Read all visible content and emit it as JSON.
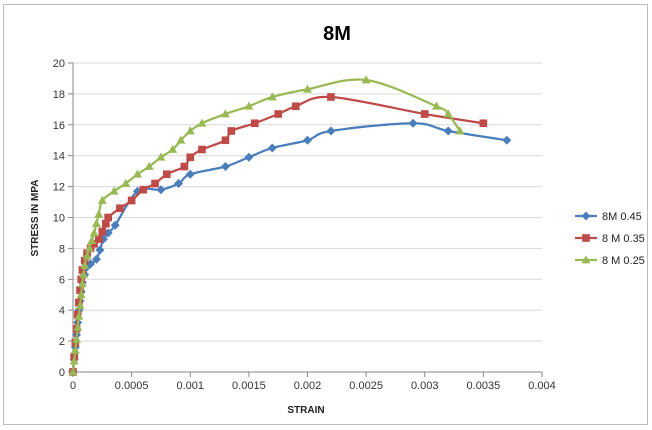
{
  "chart_data": {
    "type": "line",
    "title": "8M",
    "xlabel": "STRAIN",
    "ylabel": "STRESS IN MPA",
    "xlim": [
      0,
      0.004
    ],
    "ylim": [
      0,
      20
    ],
    "xticks": [
      0,
      0.0005,
      0.001,
      0.0015,
      0.002,
      0.0025,
      0.003,
      0.0035,
      0.004
    ],
    "xtick_labels": [
      "0",
      "0.0005",
      "0.001",
      "0.0015",
      "0.002",
      "0.0025",
      "0.003",
      "0.0035",
      "0.004"
    ],
    "yticks": [
      0,
      2,
      4,
      6,
      8,
      10,
      12,
      14,
      16,
      18,
      20
    ],
    "ytick_labels": [
      "0",
      "2",
      "4",
      "6",
      "8",
      "10",
      "12",
      "14",
      "16",
      "18",
      "20"
    ],
    "grid": "horizontal",
    "legend_position": "right",
    "series": [
      {
        "name": "8M 0.45",
        "color": "#4a7ebb",
        "marker": "diamond",
        "x": [
          0,
          1e-05,
          2e-05,
          3e-05,
          4e-05,
          5e-05,
          6e-05,
          7e-05,
          8e-05,
          0.0001,
          0.00012,
          0.00015,
          0.0002,
          0.00023,
          0.00026,
          0.0003,
          0.00036,
          0.00055,
          0.00075,
          0.0009,
          0.001,
          0.0013,
          0.0015,
          0.0017,
          0.002,
          0.0022,
          0.0029,
          0.0032,
          0.0037
        ],
        "y": [
          0,
          0.8,
          1.6,
          2.4,
          3.2,
          4.0,
          4.6,
          5.2,
          5.8,
          6.3,
          6.8,
          7.0,
          7.3,
          7.9,
          8.6,
          9.0,
          9.5,
          11.7,
          11.8,
          12.2,
          12.8,
          13.3,
          13.9,
          14.5,
          15.0,
          15.6,
          16.1,
          15.6,
          15.0
        ]
      },
      {
        "name": "8 M 0.35",
        "color": "#be4b48",
        "marker": "square",
        "x": [
          0,
          1e-05,
          2e-05,
          3e-05,
          4e-05,
          5e-05,
          6e-05,
          7e-05,
          8e-05,
          0.0001,
          0.00012,
          0.00015,
          0.00018,
          0.00022,
          0.00025,
          0.00028,
          0.0003,
          0.0004,
          0.0005,
          0.0006,
          0.0007,
          0.0008,
          0.00095,
          0.001,
          0.0011,
          0.0013,
          0.00135,
          0.00155,
          0.00175,
          0.0019,
          0.0022,
          0.003,
          0.0035
        ],
        "y": [
          0,
          1.0,
          1.9,
          2.8,
          3.7,
          4.5,
          5.3,
          6.0,
          6.6,
          7.2,
          7.7,
          8.0,
          8.3,
          8.6,
          9.1,
          9.6,
          10.0,
          10.6,
          11.1,
          11.8,
          12.2,
          12.8,
          13.3,
          13.9,
          14.4,
          15.0,
          15.6,
          16.1,
          16.7,
          17.2,
          17.8,
          16.7,
          16.1
        ]
      },
      {
        "name": "8 M 0.25",
        "color": "#98b954",
        "marker": "triangle",
        "x": [
          0,
          1e-05,
          2e-05,
          3e-05,
          4e-05,
          5e-05,
          6e-05,
          7e-05,
          8e-05,
          9e-05,
          0.0001,
          0.00012,
          0.00014,
          0.00016,
          0.00018,
          0.0002,
          0.00022,
          0.00025,
          0.00035,
          0.00045,
          0.00055,
          0.00065,
          0.00075,
          0.00085,
          0.00092,
          0.001,
          0.0011,
          0.0013,
          0.0015,
          0.0017,
          0.002,
          0.0025,
          0.0031,
          0.0032,
          0.0033
        ],
        "y": [
          0,
          0.7,
          1.4,
          2.1,
          2.9,
          3.6,
          4.3,
          5.0,
          5.7,
          6.3,
          6.9,
          7.5,
          8.0,
          8.5,
          9.0,
          9.6,
          10.2,
          11.1,
          11.7,
          12.2,
          12.8,
          13.3,
          13.9,
          14.4,
          15.0,
          15.6,
          16.1,
          16.7,
          17.2,
          17.8,
          18.3,
          18.9,
          17.2,
          16.7,
          15.6
        ]
      }
    ]
  }
}
